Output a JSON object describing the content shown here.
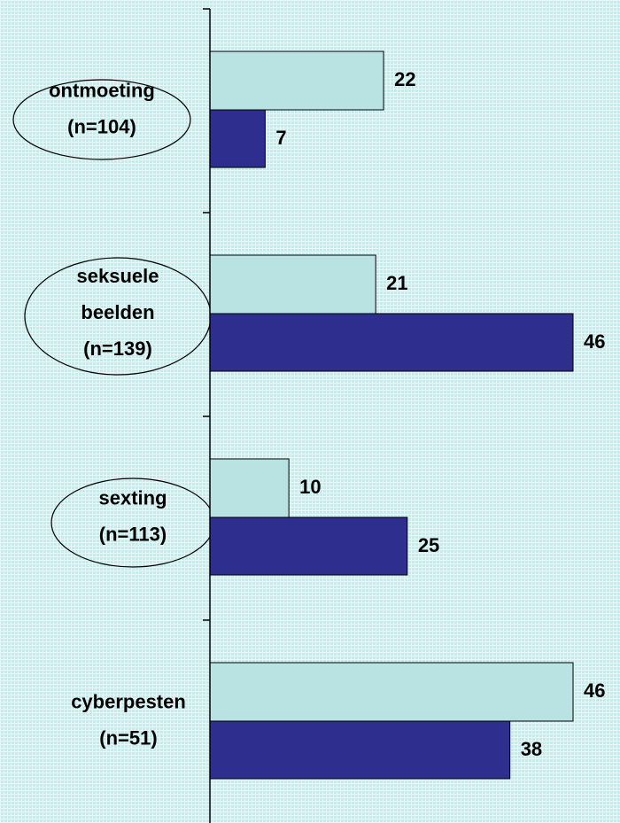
{
  "chart_data": {
    "type": "bar",
    "orientation": "horizontal",
    "categories": [
      [
        "ontmoeting",
        "(n=104)"
      ],
      [
        "seksuele",
        "beelden",
        "(n=139)"
      ],
      [
        "sexting",
        "(n=113)"
      ],
      [
        "cyberpesten",
        "(n=51)"
      ]
    ],
    "series": [
      {
        "color": "#b9e3e3",
        "values": [
          22,
          21,
          10,
          46
        ]
      },
      {
        "color": "#2e2e8e",
        "values": [
          7,
          46,
          25,
          38
        ]
      }
    ],
    "xlim": [
      0,
      46
    ]
  }
}
